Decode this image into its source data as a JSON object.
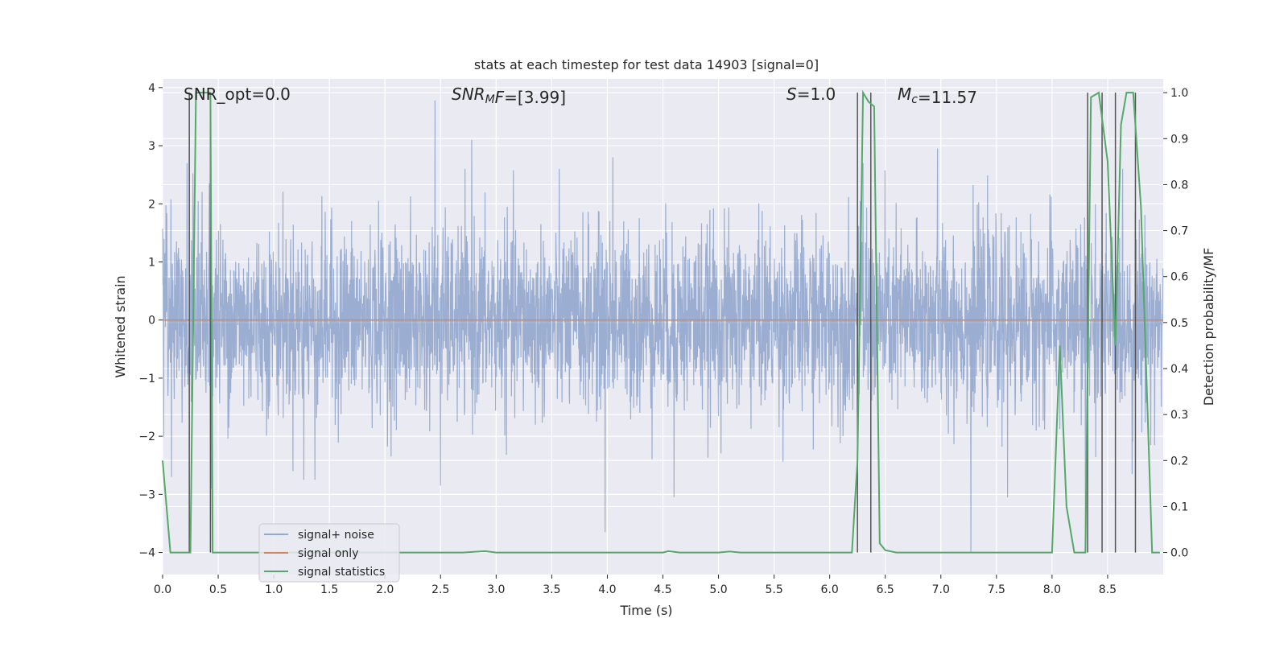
{
  "chart_data": {
    "type": "line",
    "title": "stats at each timestep for test data 14903 [signal=0]",
    "xlabel": "Time (s)",
    "ylabel": "Whitened strain",
    "ylabel_right": "Detection probability/MF",
    "xlim": [
      0.0,
      9.0
    ],
    "ylim": [
      -4.38,
      4.15
    ],
    "ylim_right": [
      -0.048,
      1.03
    ],
    "x_ticks": [
      "0.0",
      "0.5",
      "1.0",
      "1.5",
      "2.0",
      "2.5",
      "3.0",
      "3.5",
      "4.0",
      "4.5",
      "5.0",
      "5.5",
      "6.0",
      "6.5",
      "7.0",
      "7.5",
      "8.0",
      "8.5"
    ],
    "y_ticks": [
      "−4",
      "−3",
      "−2",
      "−1",
      "0",
      "1",
      "2",
      "3",
      "4"
    ],
    "y_right_ticks": [
      "0.0",
      "0.1",
      "0.2",
      "0.3",
      "0.4",
      "0.5",
      "0.6",
      "0.7",
      "0.8",
      "0.9",
      "1.0"
    ],
    "grid": true,
    "legend_position": "lower-left",
    "colors": {
      "noise": "#4c72b0",
      "signal": "#dd8452",
      "stats": "#55a868",
      "vlines": "#555555",
      "background": "#eaeaf2",
      "grid": "#ffffff"
    },
    "annotations": [
      {
        "id": "snr-opt",
        "segments": [
          {
            "text": "SNR_opt=0.0",
            "italic": false
          }
        ]
      },
      {
        "id": "snr-mf",
        "segments": [
          {
            "text": "SNR",
            "italic": true
          },
          {
            "text": "M",
            "italic": true,
            "sub": true
          },
          {
            "text": "F",
            "italic": true
          },
          {
            "text": "=[3.99]",
            "italic": false
          }
        ]
      },
      {
        "id": "s-value",
        "segments": [
          {
            "text": "S",
            "italic": true
          },
          {
            "text": "=1.0",
            "italic": false
          }
        ]
      },
      {
        "id": "mc-value",
        "segments": [
          {
            "text": "M",
            "italic": true
          },
          {
            "text": "c",
            "italic": true,
            "sub": true
          },
          {
            "text": "=11.57",
            "italic": false
          }
        ]
      }
    ],
    "series": [
      {
        "name": "signal+ noise",
        "axis": "left",
        "kind": "noise",
        "x_range": [
          0.0,
          9.0
        ],
        "description_envelope": {
          "typical_upper": 1.7,
          "typical_lower": -1.7
        },
        "peaks": [
          {
            "x": 0.22,
            "y": 2.7
          },
          {
            "x": 0.42,
            "y": 2.35
          },
          {
            "x": 0.44,
            "y": -2.9
          },
          {
            "x": 0.08,
            "y": -2.7
          },
          {
            "x": 2.45,
            "y": 3.78
          },
          {
            "x": 2.78,
            "y": 3.1
          },
          {
            "x": 2.5,
            "y": -2.85
          },
          {
            "x": 3.98,
            "y": -3.65
          },
          {
            "x": 4.05,
            "y": 2.8
          },
          {
            "x": 4.6,
            "y": -3.05
          },
          {
            "x": 6.3,
            "y": 2.7
          },
          {
            "x": 6.97,
            "y": 2.95
          },
          {
            "x": 7.27,
            "y": -4.0
          },
          {
            "x": 7.6,
            "y": -3.05
          },
          {
            "x": 8.72,
            "y": -2.65
          },
          {
            "x": 8.3,
            "y": -3.6
          },
          {
            "x": 1.27,
            "y": -2.75
          },
          {
            "x": 1.37,
            "y": -2.75
          }
        ]
      },
      {
        "name": "signal only",
        "axis": "left",
        "kind": "line",
        "x": [
          0.0,
          9.0
        ],
        "y": [
          0.0,
          0.0
        ]
      },
      {
        "name": "signal statistics",
        "axis": "right",
        "kind": "line",
        "x": [
          0.0,
          0.07,
          0.25,
          0.3,
          0.35,
          0.43,
          0.45,
          0.6,
          1.0,
          2.0,
          2.7,
          2.9,
          3.0,
          4.0,
          4.5,
          4.55,
          4.65,
          5.0,
          5.1,
          5.2,
          6.0,
          6.2,
          6.25,
          6.3,
          6.35,
          6.4,
          6.45,
          6.5,
          6.6,
          7.0,
          8.0,
          8.07,
          8.13,
          8.2,
          8.3,
          8.35,
          8.42,
          8.5,
          8.57,
          8.62,
          8.67,
          8.73,
          8.8,
          8.9,
          8.97
        ],
        "y": [
          0.2,
          0.0,
          0.0,
          1.0,
          1.0,
          1.0,
          0.0,
          0.0,
          0.0,
          0.0,
          0.0,
          0.003,
          0.0,
          0.0,
          0.0,
          0.003,
          0.0,
          0.0,
          0.002,
          0.0,
          0.0,
          0.0,
          0.2,
          1.0,
          0.98,
          0.97,
          0.02,
          0.005,
          0.0,
          0.0,
          0.0,
          0.45,
          0.1,
          0.0,
          0.0,
          0.99,
          1.0,
          0.85,
          0.45,
          0.93,
          1.0,
          1.0,
          0.75,
          0.0,
          0.0
        ]
      }
    ],
    "vertical_lines": [
      0.24,
      0.43,
      6.25,
      6.37,
      8.32,
      8.45,
      8.57,
      8.75
    ],
    "legend": [
      "signal+ noise",
      "signal only",
      "signal statistics"
    ]
  }
}
